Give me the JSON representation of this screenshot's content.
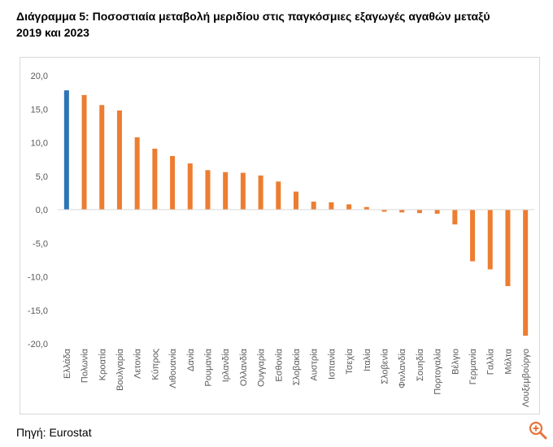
{
  "title": "Διάγραμμα 5: Ποσοστιαία μεταβολή μεριδίου στις παγκόσμιες εξαγωγές αγαθών μεταξύ 2019 και 2023",
  "source": "Πηγή: Eurostat",
  "icons": {
    "zoom": "zoom-in-icon"
  },
  "colors": {
    "highlight": "#2E75B6",
    "default": "#ED7D31",
    "grid": "#d9d9d9",
    "text": "#595959"
  },
  "chart_data": {
    "type": "bar",
    "title": "Ποσοστιαία μεταβολή μεριδίου στις παγκόσμιες εξαγωγές αγαθών μεταξύ 2019 και 2023",
    "xlabel": "",
    "ylabel": "",
    "ylim": [
      -20,
      20
    ],
    "yticks": [
      20,
      15,
      10,
      5,
      0,
      -5,
      -10,
      -15,
      -20
    ],
    "ytick_labels": [
      "20,0",
      "15,0",
      "10,0",
      "5,0",
      "0,0",
      "-5,0",
      "-10,0",
      "-15,0",
      "-20,0"
    ],
    "grid": false,
    "highlight_category": "Ελλάδα",
    "categories": [
      "Ελλάδα",
      "Πολωνία",
      "Κροατία",
      "Βουλγαρία",
      "Λετονία",
      "Κύπρος",
      "Λιθουανία",
      "Δανία",
      "Ρουμανία",
      "Ιρλανδία",
      "Ολλανδία",
      "Ουγγαρία",
      "Εσθονία",
      "Σλοβακία",
      "Αυστρία",
      "Ισπανία",
      "Τσεχία",
      "Ιταλία",
      "Σλοβενία",
      "Φινλανδία",
      "Σουηδία",
      "Πορτογαλία",
      "Βέλγιο",
      "Γερμανία",
      "Γαλλία",
      "Μάλτα",
      "Λουξεμβούργο"
    ],
    "values": [
      17.8,
      17.1,
      15.6,
      14.8,
      10.8,
      9.1,
      8.0,
      6.9,
      5.9,
      5.6,
      5.5,
      5.1,
      4.2,
      2.7,
      1.2,
      1.1,
      0.8,
      0.4,
      -0.3,
      -0.4,
      -0.5,
      -0.6,
      -2.2,
      -7.7,
      -8.9,
      -11.4,
      -18.8
    ]
  }
}
